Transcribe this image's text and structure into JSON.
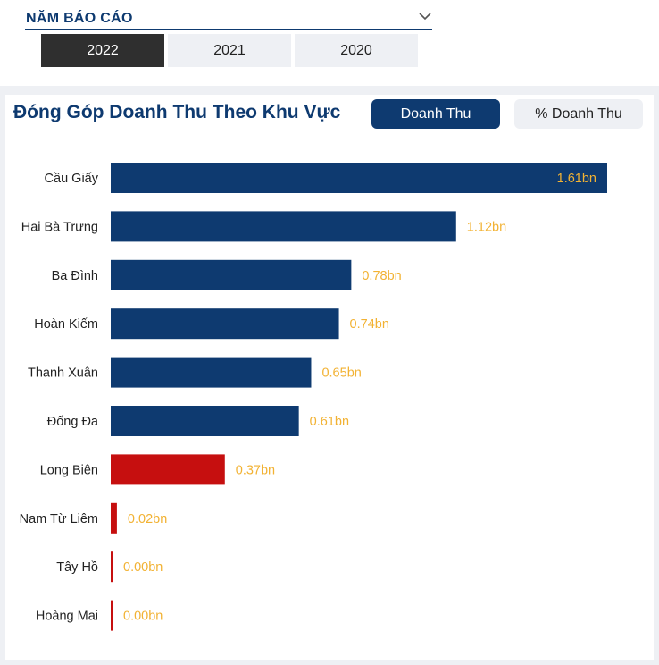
{
  "slicer": {
    "title": "NĂM BÁO CÁO",
    "years": [
      {
        "label": "2022",
        "active": true
      },
      {
        "label": "2021",
        "active": false
      },
      {
        "label": "2020",
        "active": false
      }
    ]
  },
  "card": {
    "title": "Đóng Góp Doanh Thu Theo Khu Vực",
    "toggle_revenue": "Doanh Thu",
    "toggle_percent": "% Doanh Thu"
  },
  "colors": {
    "primary": "#0e3a70",
    "highlight": "#c60f0f",
    "label": "#f2b233"
  },
  "chart_data": {
    "type": "bar",
    "orientation": "horizontal",
    "unit": "bn",
    "categories": [
      "Cầu Giấy",
      "Hai Bà Trưng",
      "Ba Đình",
      "Hoàn Kiếm",
      "Thanh Xuân",
      "Đống Đa",
      "Long Biên",
      "Nam Từ Liêm",
      "Tây Hồ",
      "Hoàng Mai"
    ],
    "values": [
      1.61,
      1.12,
      0.78,
      0.74,
      0.65,
      0.61,
      0.37,
      0.02,
      0.0,
      0.0
    ],
    "value_labels": [
      "1.61bn",
      "1.12bn",
      "0.78bn",
      "0.74bn",
      "0.65bn",
      "0.61bn",
      "0.37bn",
      "0.02bn",
      "0.00bn",
      "0.00bn"
    ],
    "bar_colors": [
      "#0e3a70",
      "#0e3a70",
      "#0e3a70",
      "#0e3a70",
      "#0e3a70",
      "#0e3a70",
      "#c60f0f",
      "#c60f0f",
      "#c60f0f",
      "#c60f0f"
    ],
    "xlim": [
      0,
      1.61
    ],
    "grid": false,
    "legend": "none"
  }
}
